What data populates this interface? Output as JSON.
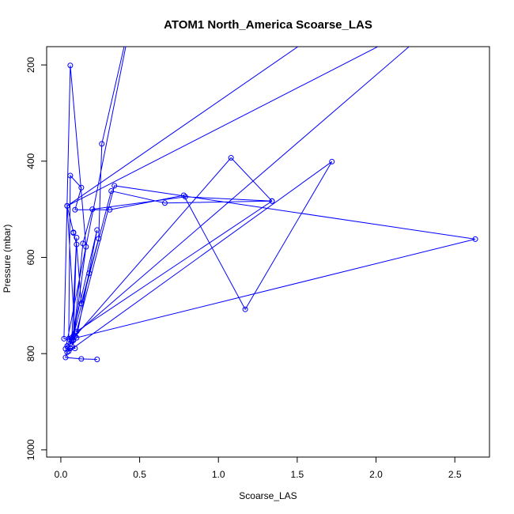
{
  "chart_data": {
    "type": "line",
    "title": "ATOM1 North_America Scoarse_LAS",
    "xlabel": "Scoarse_LAS",
    "ylabel": "Pressure (mbar)",
    "xlim": [
      -0.09,
      2.72
    ],
    "ylim": [
      1015,
      162
    ],
    "y_reversed": true,
    "x_ticks": [
      "0.0",
      "0.5",
      "1.0",
      "1.5",
      "2.0",
      "2.5"
    ],
    "x_tick_values": [
      0,
      0.5,
      1.0,
      1.5,
      2.0,
      2.5
    ],
    "y_ticks": [
      "200",
      "400",
      "600",
      "800",
      "1000"
    ],
    "y_tick_values": [
      200,
      400,
      600,
      800,
      1000
    ],
    "grid": false,
    "legend": "none",
    "marker": "open-circle",
    "color": "#0000ff",
    "segments": [
      {
        "x": [
          0.23,
          0.13,
          0.03,
          0.04,
          0.06,
          0.06,
          0.07,
          0.09,
          0.04,
          0.08,
          0.08,
          0.1,
          0.13,
          0.18,
          0.24,
          0.26,
          0.48
        ]
      },
      {
        "y": [
          812,
          811,
          808,
          797,
          789,
          780,
          771,
          757,
          493,
          548,
          549,
          573,
          696,
          633,
          561,
          364,
          50
        ]
      },
      {
        "x": [
          0.03,
          0.06,
          0.09,
          0.07,
          0.05,
          0.06,
          0.13,
          0.09,
          0.31,
          0.78,
          1.17,
          1.72
        ]
      },
      {
        "y": [
          790,
          789,
          789,
          773,
          769,
          430,
          455,
          501,
          501,
          471,
          708,
          401
        ]
      },
      {
        "x": [
          0.05,
          0.04,
          0.07,
          0.32,
          0.66,
          1.34,
          0.79,
          0.2,
          0.14,
          0.08,
          0.02,
          0.06,
          0.16,
          0.08
        ]
      },
      {
        "y": [
          795,
          784,
          775,
          462,
          487,
          483,
          474,
          500,
          571,
          772,
          769,
          201,
          578,
          772
        ]
      },
      {
        "x": [
          0.09,
          1.08,
          1.34,
          0.1,
          0.34,
          2.63,
          0.1,
          0.23,
          0.07,
          0.1,
          0.08,
          2.5,
          0.04,
          2.0
        ]
      },
      {
        "y": [
          764,
          393,
          483,
          754,
          451,
          562,
          767,
          543,
          767,
          559,
          763,
          80,
          493,
          50
        ]
      }
    ]
  }
}
